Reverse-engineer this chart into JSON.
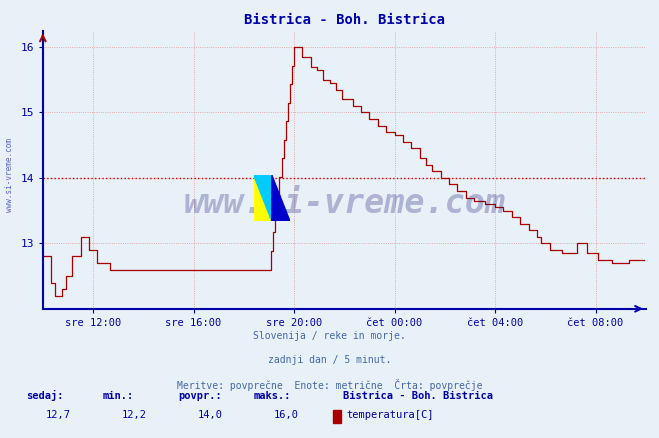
{
  "title": "Bistrica - Boh. Bistrica",
  "title_color": "#0000aa",
  "bg_color": "#e8f0f8",
  "line_color": "#aa0000",
  "avg_line_color": "#dd0000",
  "avg_value": 14.0,
  "ylim": [
    12.0,
    16.25
  ],
  "yticks": [
    13,
    14,
    15,
    16
  ],
  "xlabel_ticks": [
    "sre 12:00",
    "sre 16:00",
    "sre 20:00",
    "čet 00:00",
    "čet 04:00",
    "čet 08:00"
  ],
  "grid_color": "#dd8888",
  "axis_color": "#0000aa",
  "tick_color": "#0000aa",
  "watermark_text": "www.si-vreme.com",
  "watermark_color": "#000066",
  "watermark_alpha": 0.25,
  "side_text": "www.si-vreme.com",
  "footer_lines": [
    "Slovenija / reke in morje.",
    "zadnji dan / 5 minut.",
    "Meritve: povprečne  Enote: metrične  Črta: povprečje"
  ],
  "footer_color": "#4466aa",
  "legend_label_bold": "Bistrica - Boh. Bistrica",
  "legend_label_normal": "temperatura[C]",
  "stats_labels": [
    "sedaj:",
    "min.:",
    "povpr.:",
    "maks.:"
  ],
  "stats_values": [
    "12,7",
    "12,2",
    "14,0",
    "16,0"
  ],
  "n_points": 288,
  "xlim": [
    0,
    288
  ]
}
